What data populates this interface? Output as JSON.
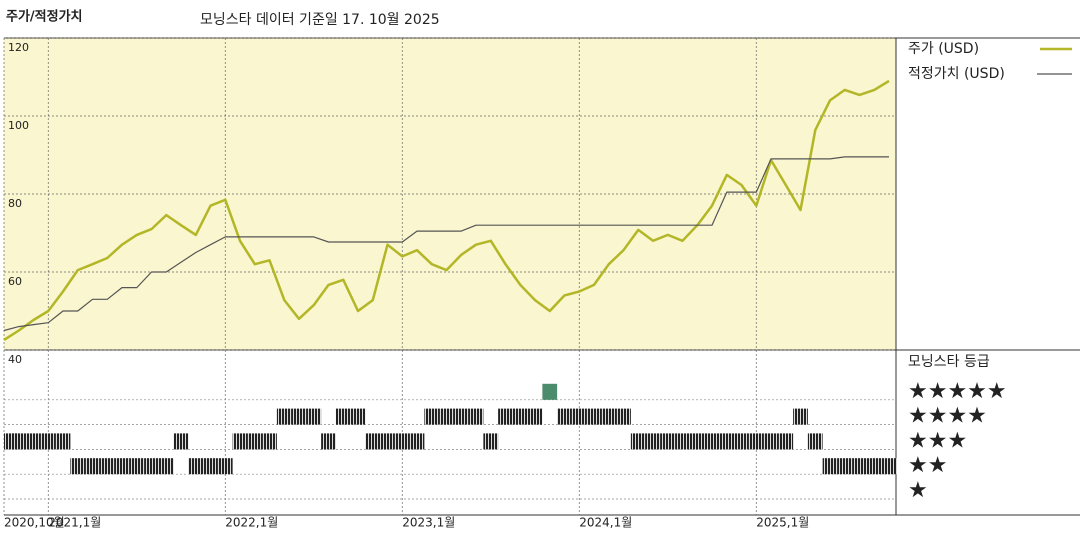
{
  "chart_data": {
    "type": "line",
    "title": "주가/적정가치",
    "subtitle": "모닝스타 데이터 기준일 17. 10월 2025",
    "x": [
      "2020-10",
      "2020-11",
      "2020-12",
      "2021-01",
      "2021-02",
      "2021-03",
      "2021-04",
      "2021-05",
      "2021-06",
      "2021-07",
      "2021-08",
      "2021-09",
      "2021-10",
      "2021-11",
      "2021-12",
      "2022-01",
      "2022-02",
      "2022-03",
      "2022-04",
      "2022-05",
      "2022-06",
      "2022-07",
      "2022-08",
      "2022-09",
      "2022-10",
      "2022-11",
      "2022-12",
      "2023-01",
      "2023-02",
      "2023-03",
      "2023-04",
      "2023-05",
      "2023-06",
      "2023-07",
      "2023-08",
      "2023-09",
      "2023-10",
      "2023-11",
      "2023-12",
      "2024-01",
      "2024-02",
      "2024-03",
      "2024-04",
      "2024-05",
      "2024-06",
      "2024-07",
      "2024-08",
      "2024-09",
      "2024-10",
      "2024-11",
      "2024-12",
      "2025-01",
      "2025-02",
      "2025-03",
      "2025-04",
      "2025-05",
      "2025-06",
      "2025-07",
      "2025-08",
      "2025-09",
      "2025-10"
    ],
    "series": [
      {
        "name": "주가 (USD)",
        "color": "#b3b626",
        "values": [
          42.6,
          45,
          47.7,
          50,
          55,
          60.5,
          62,
          63.6,
          67,
          69.5,
          71,
          74.6,
          72,
          69.5,
          77,
          78.5,
          68,
          62,
          63,
          52.8,
          48,
          51.5,
          56.7,
          58,
          50,
          52.8,
          67,
          64,
          65.6,
          62,
          60.5,
          64.4,
          67,
          68,
          62,
          56.7,
          52.8,
          50,
          54,
          55,
          56.7,
          62,
          65.6,
          70.8,
          68,
          69.5,
          68,
          72,
          77,
          84.9,
          82.3,
          77,
          88.7,
          82.3,
          75.9,
          96.4,
          104,
          106.7,
          105.4,
          106.7,
          109
        ]
      },
      {
        "name": "적정가치 (USD)",
        "color": "#555555",
        "values": [
          45,
          46,
          46.5,
          47,
          50,
          50,
          53,
          53,
          56,
          56,
          60,
          60,
          62.5,
          65,
          67,
          69,
          69,
          69,
          69,
          69,
          69,
          69,
          67.7,
          67.7,
          67.7,
          67.7,
          67.7,
          67.7,
          70.5,
          70.5,
          70.5,
          70.5,
          72,
          72,
          72,
          72,
          72,
          72,
          72,
          72,
          72,
          72,
          72,
          72,
          72,
          72,
          72,
          72,
          72,
          80.5,
          80.5,
          80.5,
          89,
          89,
          89,
          89,
          89,
          89.5,
          89.5,
          89.5,
          89.5
        ]
      }
    ],
    "ylim": [
      40,
      120
    ],
    "yticks": [
      40,
      60,
      80,
      100,
      120
    ],
    "xticks": [
      {
        "value": "2020-10",
        "label": "2020,10월"
      },
      {
        "value": "2021-01",
        "label": "2021,1월"
      },
      {
        "value": "2022-01",
        "label": "2022,1월"
      },
      {
        "value": "2023-01",
        "label": "2023,1월"
      },
      {
        "value": "2024-01",
        "label": "2024,1월"
      },
      {
        "value": "2025-01",
        "label": "2025,1월"
      }
    ],
    "grid": true,
    "legend": "right",
    "ratings": {
      "title": "모닝스타 등급",
      "labels": [
        "★★★★★",
        "★★★★",
        "★★★",
        "★★",
        "★"
      ],
      "values": [
        3,
        3,
        3,
        3,
        3,
        2,
        2,
        2,
        2,
        2,
        2,
        2,
        3,
        2,
        2,
        2,
        3,
        3,
        3,
        4,
        4,
        4,
        3,
        4,
        4,
        3,
        3,
        3,
        3,
        4,
        4,
        4,
        4,
        3,
        4,
        4,
        4,
        5,
        4,
        4,
        4,
        4,
        4,
        3,
        3,
        3,
        3,
        3,
        3,
        3,
        3,
        3,
        3,
        3,
        4,
        3,
        2,
        2,
        2,
        2,
        2
      ]
    }
  }
}
